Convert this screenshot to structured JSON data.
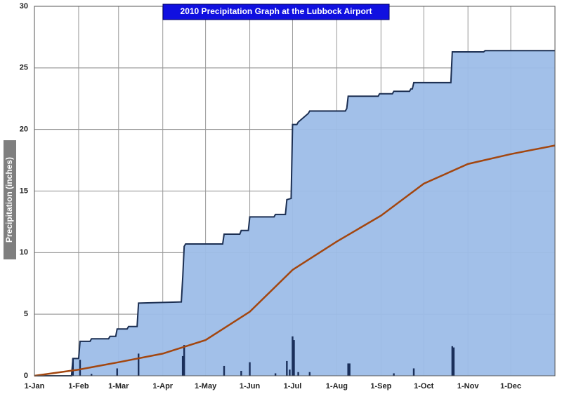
{
  "chart_data": {
    "type": "area",
    "title": "2010 Precipitation Graph at the Lubbock Airport",
    "y_label": "Precipitation (inches)",
    "xlim": [
      1,
      366
    ],
    "ylim": [
      0,
      30
    ],
    "xticks": [
      {
        "value": 1,
        "label": "1-Jan"
      },
      {
        "value": 32,
        "label": "1-Feb"
      },
      {
        "value": 60,
        "label": "1-Mar"
      },
      {
        "value": 91,
        "label": "1-Apr"
      },
      {
        "value": 121,
        "label": "1-May"
      },
      {
        "value": 152,
        "label": "1-Jun"
      },
      {
        "value": 182,
        "label": "1-Jul"
      },
      {
        "value": 213,
        "label": "1-Aug"
      },
      {
        "value": 244,
        "label": "1-Sep"
      },
      {
        "value": 274,
        "label": "1-Oct"
      },
      {
        "value": 305,
        "label": "1-Nov"
      },
      {
        "value": 335,
        "label": "1-Dec"
      }
    ],
    "yticks": [
      0,
      5,
      10,
      15,
      20,
      25,
      30
    ],
    "grid": true,
    "series": [
      {
        "kind": "area",
        "color": "#1c2f52",
        "fill": "#9dbde8",
        "x": [
          1,
          27,
          28,
          32,
          33,
          40,
          41,
          53,
          54,
          58,
          59,
          66,
          67,
          73,
          74,
          104,
          105,
          106,
          107,
          133,
          134,
          145,
          146,
          151,
          152,
          169,
          170,
          177,
          178,
          181,
          182,
          185,
          186,
          193,
          194,
          219,
          220,
          221,
          222,
          242,
          243,
          252,
          253,
          264,
          265,
          266,
          267,
          293,
          294,
          316,
          317,
          366
        ],
        "values": [
          0,
          0,
          1.4,
          1.4,
          2.8,
          2.8,
          3.0,
          3.0,
          3.2,
          3.2,
          3.8,
          3.8,
          4.0,
          4.0,
          5.9,
          6.0,
          8.0,
          10.5,
          10.7,
          10.7,
          11.5,
          11.5,
          11.8,
          11.8,
          12.9,
          12.9,
          13.1,
          13.1,
          14.3,
          14.4,
          20.4,
          20.4,
          20.6,
          21.3,
          21.5,
          21.5,
          21.7,
          22.7,
          22.7,
          22.7,
          22.9,
          22.9,
          23.1,
          23.1,
          23.3,
          23.3,
          23.8,
          23.8,
          26.3,
          26.3,
          26.4,
          26.4
        ]
      },
      {
        "kind": "line",
        "color": "#a3460f",
        "x": [
          1,
          32,
          60,
          91,
          121,
          152,
          182,
          213,
          244,
          274,
          305,
          335,
          366
        ],
        "values": [
          0,
          0.5,
          1.1,
          1.8,
          2.9,
          5.2,
          8.6,
          10.9,
          13.0,
          15.6,
          17.2,
          18.0,
          18.7
        ]
      },
      {
        "kind": "bars",
        "color": "#1a2f5a",
        "x": [
          28,
          33,
          41,
          59,
          74,
          105,
          106,
          134,
          146,
          152,
          170,
          178,
          180,
          182,
          183,
          186,
          194,
          221,
          222,
          253,
          267,
          294,
          295
        ],
        "values": [
          1.4,
          1.3,
          0.15,
          0.6,
          1.8,
          1.6,
          2.5,
          0.8,
          0.4,
          1.1,
          0.2,
          1.2,
          0.5,
          3.2,
          2.9,
          0.3,
          0.3,
          1.0,
          1.0,
          0.2,
          0.6,
          2.4,
          2.3
        ]
      }
    ]
  }
}
